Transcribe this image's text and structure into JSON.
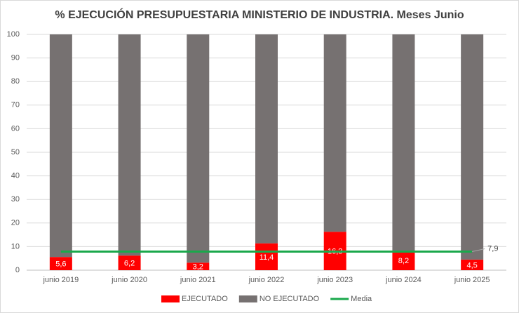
{
  "chart_data": {
    "type": "bar",
    "stacked": true,
    "title": "% EJECUCIÓN PRESUPUESTARIA MINISTERIO DE INDUSTRIA. Meses Junio",
    "categories": [
      "junio 2019",
      "junio 2020",
      "junio 2021",
      "junio 2022",
      "junio 2023",
      "junio 2024",
      "junio 2025"
    ],
    "series": [
      {
        "name": "EJECUTADO",
        "color": "#ff0000",
        "values": [
          5.6,
          6.2,
          3.2,
          11.4,
          16.3,
          8.2,
          4.5
        ],
        "value_labels": [
          "5,6",
          "6,2",
          "3,2",
          "11,4",
          "16,3",
          "8,2",
          "4,5"
        ]
      },
      {
        "name": "NO EJECUTADO",
        "color": "#767171",
        "values": [
          94.4,
          93.8,
          96.8,
          88.6,
          83.7,
          91.8,
          95.5
        ]
      },
      {
        "name": "Media",
        "type": "line",
        "color": "#1aa84b",
        "values": [
          7.9,
          7.9,
          7.9,
          7.9,
          7.9,
          7.9,
          7.9
        ],
        "value_labels": [
          null,
          null,
          null,
          null,
          null,
          null,
          "7,9"
        ]
      }
    ],
    "ylim": [
      0,
      100
    ],
    "yticks": [
      0,
      10,
      20,
      30,
      40,
      50,
      60,
      70,
      80,
      90,
      100
    ],
    "grid": true,
    "legend": "bottom"
  }
}
